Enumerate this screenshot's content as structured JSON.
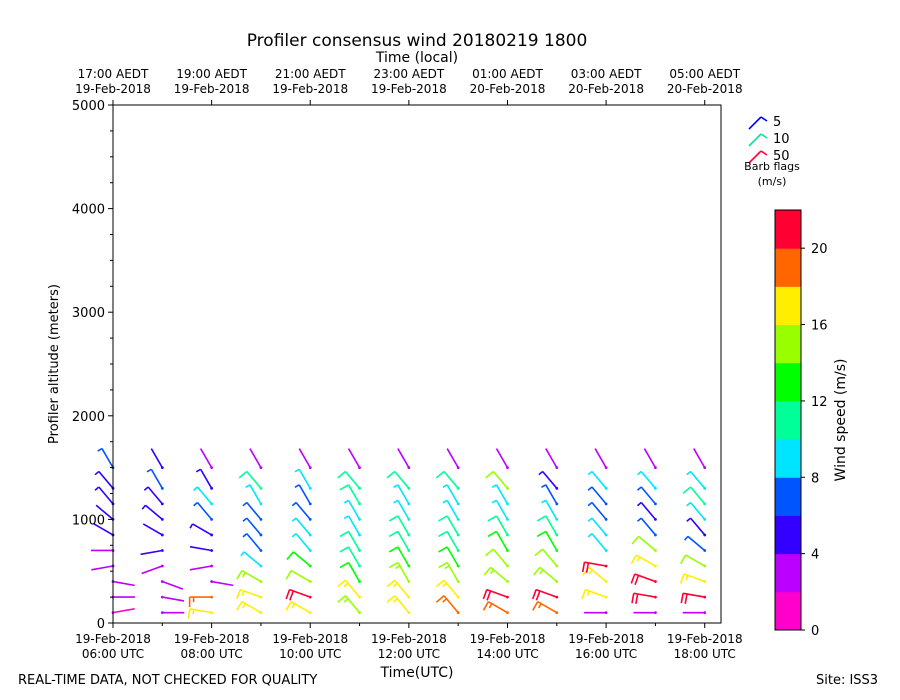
{
  "chart_data": {
    "type": "wind-barb",
    "title": "Profiler consensus wind 20180219 1800",
    "top_axis_label": "Time (local)",
    "top_ticks": [
      {
        "line1": "17:00 AEDT",
        "line2": "19-Feb-2018"
      },
      {
        "line1": "19:00 AEDT",
        "line2": "19-Feb-2018"
      },
      {
        "line1": "21:00 AEDT",
        "line2": "19-Feb-2018"
      },
      {
        "line1": "23:00 AEDT",
        "line2": "19-Feb-2018"
      },
      {
        "line1": "01:00 AEDT",
        "line2": "20-Feb-2018"
      },
      {
        "line1": "03:00 AEDT",
        "line2": "20-Feb-2018"
      },
      {
        "line1": "05:00 AEDT",
        "line2": "20-Feb-2018"
      }
    ],
    "bottom_ticks": [
      {
        "line1": "19-Feb-2018",
        "line2": "06:00 UTC"
      },
      {
        "line1": "19-Feb-2018",
        "line2": "08:00 UTC"
      },
      {
        "line1": "19-Feb-2018",
        "line2": "10:00 UTC"
      },
      {
        "line1": "19-Feb-2018",
        "line2": "12:00 UTC"
      },
      {
        "line1": "19-Feb-2018",
        "line2": "14:00 UTC"
      },
      {
        "line1": "19-Feb-2018",
        "line2": "16:00 UTC"
      },
      {
        "line1": "19-Feb-2018",
        "line2": "18:00 UTC"
      }
    ],
    "xlabel": "Time(UTC)",
    "ylabel": "Profiler altitude (meters)",
    "x_range_utc_hours": [
      6.0,
      18.33
    ],
    "ylim": [
      0,
      5000
    ],
    "y_ticks": [
      0,
      1000,
      2000,
      3000,
      4000,
      5000
    ],
    "barb_legend": {
      "entries": [
        {
          "label": "5",
          "color": "#0000ff"
        },
        {
          "label": "10",
          "color": "#00e5a0"
        },
        {
          "label": "50",
          "color": "#ff0033"
        }
      ],
      "title_line1": "Barb flags",
      "title_line2": "(m/s)"
    },
    "colorbar": {
      "label": "Wind speed (m/s)",
      "ticks": [
        0,
        4,
        8,
        12,
        16,
        20
      ],
      "range": [
        0,
        22
      ],
      "colors": [
        "#ff00cc",
        "#bb00ff",
        "#3300ff",
        "#0055ff",
        "#00e5ff",
        "#00ff99",
        "#00ff00",
        "#99ff00",
        "#ffee00",
        "#ff6600",
        "#ff0033"
      ]
    },
    "time_columns_utc_hours": [
      6.0,
      6.25,
      6.5,
      6.75,
      7.0,
      7.25,
      7.5,
      7.75,
      8.0,
      8.25,
      8.5,
      8.75,
      9.0,
      9.25,
      9.5,
      9.75,
      10.0,
      10.25,
      10.5,
      10.75,
      11.0,
      11.25,
      11.5,
      11.75,
      12.0,
      12.25,
      12.5,
      12.75,
      13.0,
      13.25,
      13.5,
      13.75,
      14.0,
      14.25,
      14.5,
      14.75,
      15.0,
      15.25,
      15.5,
      15.75,
      16.0,
      16.25,
      16.5,
      16.75,
      17.0,
      17.25,
      17.5,
      17.75,
      18.0,
      18.25
    ],
    "profiles": [
      {
        "t": 6.0,
        "speed": [
          1,
          2,
          2,
          3,
          3,
          4,
          4,
          5,
          5,
          6
        ],
        "dir": [
          80,
          90,
          100,
          260,
          270,
          300,
          310,
          320,
          320,
          330
        ]
      },
      {
        "t": 7.0,
        "speed": [
          2,
          2,
          3,
          3,
          4,
          4,
          5,
          5,
          6,
          4
        ],
        "dir": [
          90,
          100,
          110,
          250,
          260,
          300,
          310,
          320,
          330,
          330
        ]
      },
      {
        "t": 8.0,
        "speed": [
          17,
          19,
          3,
          3,
          4,
          5,
          6,
          9,
          5,
          3
        ],
        "dir": [
          280,
          270,
          100,
          260,
          280,
          300,
          320,
          320,
          330,
          330
        ]
      },
      {
        "t": 9.0,
        "speed": [
          17,
          16,
          15,
          9,
          7,
          6,
          7,
          9,
          10,
          3
        ],
        "dir": [
          300,
          290,
          300,
          310,
          320,
          320,
          320,
          330,
          320,
          330
        ]
      },
      {
        "t": 10.0,
        "speed": [
          17,
          20,
          14,
          12,
          9,
          8,
          7,
          6,
          9,
          3
        ],
        "dir": [
          300,
          290,
          300,
          310,
          320,
          320,
          320,
          330,
          330,
          330
        ]
      },
      {
        "t": 11.0,
        "speed": [
          15,
          16,
          12,
          10,
          10,
          9,
          9,
          10,
          11,
          2
        ],
        "dir": [
          320,
          320,
          330,
          330,
          330,
          330,
          330,
          330,
          320,
          330
        ]
      },
      {
        "t": 12.0,
        "speed": [
          16,
          17,
          15,
          12,
          11,
          10,
          9,
          8,
          11,
          2
        ],
        "dir": [
          320,
          320,
          330,
          330,
          330,
          330,
          330,
          330,
          320,
          330
        ]
      },
      {
        "t": 13.0,
        "speed": [
          18,
          16,
          15,
          12,
          11,
          10,
          9,
          8,
          10,
          2
        ],
        "dir": [
          320,
          320,
          330,
          330,
          330,
          330,
          330,
          330,
          320,
          330
        ]
      },
      {
        "t": 14.0,
        "speed": [
          18,
          20,
          15,
          14,
          13,
          11,
          9,
          8,
          14,
          3
        ],
        "dir": [
          300,
          290,
          310,
          320,
          330,
          330,
          330,
          330,
          320,
          330
        ]
      },
      {
        "t": 15.0,
        "speed": [
          18,
          20,
          15,
          14,
          13,
          11,
          9,
          7,
          5,
          3
        ],
        "dir": [
          300,
          290,
          310,
          320,
          330,
          330,
          330,
          330,
          320,
          330
        ]
      },
      {
        "t": 16.0,
        "speed": [
          3,
          16,
          16,
          20,
          9,
          8,
          6,
          6,
          9,
          2
        ],
        "dir": [
          270,
          290,
          310,
          280,
          320,
          320,
          320,
          320,
          320,
          330
        ]
      },
      {
        "t": 17.0,
        "speed": [
          3,
          20,
          21,
          16,
          14,
          6,
          5,
          6,
          9,
          2
        ],
        "dir": [
          270,
          280,
          290,
          300,
          310,
          320,
          320,
          320,
          320,
          330
        ]
      },
      {
        "t": 18.0,
        "speed": [
          2,
          20,
          16,
          14,
          6,
          5,
          9,
          11,
          9,
          2
        ],
        "dir": [
          270,
          280,
          290,
          300,
          310,
          320,
          320,
          320,
          320,
          330
        ]
      }
    ],
    "profile_altitudes": [
      100,
      250,
      400,
      550,
      700,
      850,
      1000,
      1150,
      1300,
      1500
    ]
  },
  "footer": {
    "left": "REAL-TIME DATA, NOT CHECKED FOR QUALITY",
    "right": "Site: ISS3"
  }
}
